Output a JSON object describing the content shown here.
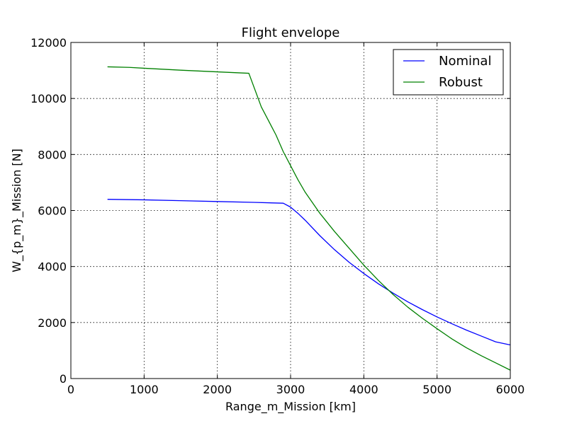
{
  "chart_data": {
    "type": "line",
    "title": "Flight envelope",
    "xlabel": "Range_m_Mission [km]",
    "ylabel": "W_{p_m}_Mission [N]",
    "xlim": [
      0,
      6000
    ],
    "ylim": [
      0,
      12000
    ],
    "xticks": [
      0,
      1000,
      2000,
      3000,
      4000,
      5000,
      6000
    ],
    "yticks": [
      0,
      2000,
      4000,
      6000,
      8000,
      10000,
      12000
    ],
    "grid": true,
    "legend_position": "top-right",
    "series": [
      {
        "name": "Nominal",
        "color": "#0000ff",
        "points": [
          [
            500,
            6400
          ],
          [
            1000,
            6380
          ],
          [
            1500,
            6350
          ],
          [
            2000,
            6320
          ],
          [
            2500,
            6290
          ],
          [
            2900,
            6260
          ],
          [
            3000,
            6120
          ],
          [
            3100,
            5900
          ],
          [
            3200,
            5650
          ],
          [
            3400,
            5100
          ],
          [
            3600,
            4600
          ],
          [
            3800,
            4150
          ],
          [
            4000,
            3750
          ],
          [
            4200,
            3380
          ],
          [
            4400,
            3050
          ],
          [
            4600,
            2740
          ],
          [
            4800,
            2460
          ],
          [
            5000,
            2200
          ],
          [
            5200,
            1960
          ],
          [
            5400,
            1730
          ],
          [
            5600,
            1520
          ],
          [
            5800,
            1310
          ],
          [
            6000,
            1200
          ]
        ]
      },
      {
        "name": "Robust",
        "color": "#008000",
        "points": [
          [
            500,
            11130
          ],
          [
            800,
            11110
          ],
          [
            1000,
            11080
          ],
          [
            1500,
            11010
          ],
          [
            2000,
            10950
          ],
          [
            2430,
            10900
          ],
          [
            2600,
            9700
          ],
          [
            2800,
            8700
          ],
          [
            2900,
            8100
          ],
          [
            3000,
            7600
          ],
          [
            3100,
            7100
          ],
          [
            3200,
            6650
          ],
          [
            3400,
            5900
          ],
          [
            3600,
            5250
          ],
          [
            3800,
            4650
          ],
          [
            4000,
            4050
          ],
          [
            4200,
            3500
          ],
          [
            4400,
            3000
          ],
          [
            4600,
            2550
          ],
          [
            4800,
            2150
          ],
          [
            5000,
            1780
          ],
          [
            5200,
            1420
          ],
          [
            5400,
            1100
          ],
          [
            5600,
            820
          ],
          [
            5800,
            560
          ],
          [
            6000,
            300
          ]
        ]
      }
    ]
  }
}
